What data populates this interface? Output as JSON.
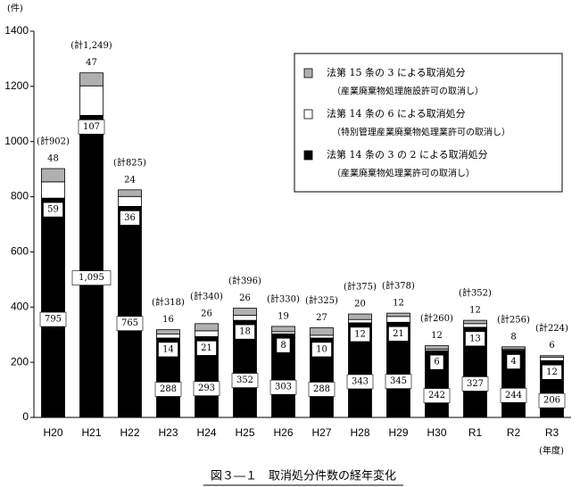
{
  "chart_data": {
    "type": "stacked_bar",
    "unit_label": "(件)",
    "x_axis_label": "(年度)",
    "caption": "図３―１　取消処分件数の経年変化",
    "categories": [
      "H20",
      "H21",
      "H22",
      "H23",
      "H24",
      "H25",
      "H26",
      "H27",
      "H28",
      "H29",
      "H30",
      "R1",
      "R2",
      "R3"
    ],
    "ylim": [
      0,
      1400
    ],
    "yticks": [
      0,
      200,
      400,
      600,
      800,
      1000,
      1200,
      1400
    ],
    "series": [
      {
        "name": "法第 14 条の 3 の 2 による取消処分",
        "description": "（産業廃棄物処理業許可の取消し）",
        "color": "#000000",
        "values": [
          795,
          1095,
          765,
          288,
          293,
          352,
          303,
          288,
          343,
          345,
          242,
          327,
          244,
          206
        ],
        "value_labels": [
          "795",
          "1,095",
          "765",
          "288",
          "293",
          "352",
          "303",
          "288",
          "343",
          "345",
          "242",
          "327",
          "244",
          "206"
        ]
      },
      {
        "name": "法第 14 条の 6 による取消処分",
        "description": "（特別管理産業廃棄物処理業許可の取消し）",
        "color": "#ffffff",
        "values": [
          59,
          107,
          36,
          14,
          21,
          18,
          8,
          10,
          12,
          21,
          6,
          13,
          4,
          12
        ]
      },
      {
        "name": "法第 15 条の 3 による取消処分",
        "description": "（産業廃棄物処理施設許可の取消し）",
        "color": "#b0b0b0",
        "values": [
          48,
          47,
          24,
          16,
          26,
          26,
          19,
          27,
          20,
          12,
          12,
          12,
          8,
          6
        ]
      }
    ],
    "totals": [
      902,
      1249,
      825,
      318,
      340,
      396,
      330,
      325,
      375,
      378,
      260,
      352,
      256,
      224
    ],
    "total_labels": [
      "(計902)",
      "(計1,249)",
      "(計825)",
      "(計318)",
      "(計340)",
      "(計396)",
      "(計330)",
      "(計325)",
      "(計375)",
      "(計378)",
      "(計260)",
      "(計352)",
      "(計256)",
      "(計224)"
    ]
  }
}
